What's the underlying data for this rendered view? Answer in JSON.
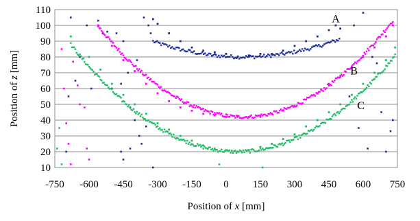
{
  "chart_data": {
    "type": "scatter",
    "xlabel_prefix": "Position of ",
    "xlabel_var": "x",
    "xlabel_unit": " [mm]",
    "ylabel_prefix": "Position of ",
    "ylabel_var": "z",
    "ylabel_unit": " [mm]",
    "xlim": [
      -750,
      750
    ],
    "ylim": [
      10,
      110
    ],
    "xticks": [
      -750,
      -600,
      -450,
      -300,
      -150,
      0,
      150,
      300,
      450,
      600,
      750
    ],
    "yticks": [
      10,
      20,
      30,
      40,
      50,
      60,
      70,
      80,
      90,
      100,
      110
    ],
    "grid": "horizontal",
    "series": [
      {
        "name": "A",
        "color": "#1f2f8f",
        "label_at": [
          480,
          102
        ],
        "curve": {
          "x_start": -320,
          "x_end": 500,
          "step": 6,
          "center": 75,
          "bottom": 80,
          "coef": 6.33e-05
        },
        "points": [
          [
            -320,
            104
          ],
          [
            -300,
            101
          ],
          [
            -250,
            95
          ],
          [
            -200,
            90
          ],
          [
            -150,
            86
          ],
          [
            -100,
            84
          ],
          [
            -50,
            83
          ],
          [
            0,
            82
          ],
          [
            50,
            80
          ],
          [
            100,
            81
          ],
          [
            150,
            82
          ],
          [
            200,
            82
          ],
          [
            250,
            84
          ],
          [
            300,
            87
          ],
          [
            350,
            90
          ],
          [
            400,
            93
          ],
          [
            450,
            97
          ],
          [
            480,
            100
          ],
          [
            500,
            98
          ]
        ],
        "outliers": [
          [
            -700,
            20
          ],
          [
            -690,
            55
          ],
          [
            -680,
            105
          ],
          [
            -660,
            65
          ],
          [
            -640,
            80
          ],
          [
            -610,
            100
          ],
          [
            -590,
            60
          ],
          [
            -560,
            103
          ],
          [
            -540,
            95
          ],
          [
            -520,
            96
          ],
          [
            -500,
            60
          ],
          [
            -480,
            95
          ],
          [
            -460,
            63
          ],
          [
            -450,
            90
          ],
          [
            -430,
            70
          ],
          [
            -420,
            48
          ],
          [
            -400,
            40
          ],
          [
            -390,
            78
          ],
          [
            -380,
            30
          ],
          [
            -370,
            25
          ],
          [
            -360,
            105
          ],
          [
            -350,
            36
          ],
          [
            -340,
            100
          ],
          [
            -330,
            95
          ],
          [
            -320,
            10
          ],
          [
            -420,
            22
          ],
          [
            -460,
            20
          ],
          [
            -450,
            15
          ],
          [
            540,
            55
          ],
          [
            560,
            100
          ],
          [
            580,
            35
          ],
          [
            600,
            108
          ],
          [
            620,
            22
          ],
          [
            640,
            80
          ],
          [
            660,
            76
          ],
          [
            680,
            45
          ],
          [
            700,
            20
          ],
          [
            720,
            33
          ],
          [
            730,
            40
          ]
        ]
      },
      {
        "name": "B",
        "color": "#ff00ff",
        "label_at": [
          560,
          69
        ],
        "curve": {
          "x_start": -560,
          "x_end": 730,
          "step": 5,
          "center": 75,
          "bottom": 42,
          "coef": 0.0001425
        },
        "points": [
          [
            -560,
            100
          ],
          [
            -500,
            87
          ],
          [
            -450,
            78
          ],
          [
            -400,
            71
          ],
          [
            -350,
            63
          ],
          [
            -300,
            57
          ],
          [
            -250,
            52
          ],
          [
            -200,
            48
          ],
          [
            -150,
            46
          ],
          [
            -100,
            44
          ],
          [
            -50,
            43
          ],
          [
            0,
            42
          ],
          [
            50,
            42
          ],
          [
            100,
            42
          ],
          [
            150,
            43
          ],
          [
            200,
            44
          ],
          [
            250,
            46
          ],
          [
            300,
            49
          ],
          [
            350,
            53
          ],
          [
            400,
            57
          ],
          [
            450,
            63
          ],
          [
            500,
            68
          ],
          [
            550,
            74
          ],
          [
            600,
            80
          ],
          [
            650,
            86
          ],
          [
            700,
            93
          ],
          [
            730,
            100
          ]
        ],
        "outliers": [
          [
            -720,
            85
          ],
          [
            -710,
            60
          ],
          [
            -700,
            38
          ],
          [
            -690,
            25
          ],
          [
            -680,
            12
          ],
          [
            -670,
            77
          ],
          [
            -650,
            62
          ],
          [
            -640,
            50
          ],
          [
            -620,
            48
          ],
          [
            -610,
            22
          ],
          [
            -600,
            15
          ]
        ]
      },
      {
        "name": "C",
        "color": "#22bb66",
        "label_at": [
          590,
          47
        ],
        "curve": {
          "x_start": -680,
          "x_end": 740,
          "step": 5,
          "center": 50,
          "bottom": 20,
          "coef": 0.0001275
        },
        "points": [
          [
            -680,
            93
          ],
          [
            -600,
            80
          ],
          [
            -550,
            72
          ],
          [
            -500,
            63
          ],
          [
            -450,
            56
          ],
          [
            -400,
            50
          ],
          [
            -350,
            44
          ],
          [
            -300,
            38
          ],
          [
            -250,
            34
          ],
          [
            -200,
            30
          ],
          [
            -150,
            27
          ],
          [
            -100,
            24
          ],
          [
            -50,
            22
          ],
          [
            0,
            21
          ],
          [
            50,
            20
          ],
          [
            100,
            21
          ],
          [
            150,
            23
          ],
          [
            200,
            25
          ],
          [
            250,
            28
          ],
          [
            300,
            31
          ],
          [
            350,
            36
          ],
          [
            400,
            40
          ],
          [
            450,
            45
          ],
          [
            500,
            50
          ],
          [
            550,
            56
          ],
          [
            600,
            63
          ],
          [
            650,
            70
          ],
          [
            700,
            78
          ],
          [
            740,
            86
          ]
        ],
        "outliers": [
          [
            -740,
            22
          ],
          [
            -730,
            35
          ],
          [
            -720,
            12
          ],
          [
            -30,
            12
          ],
          [
            160,
            10
          ]
        ]
      }
    ]
  }
}
